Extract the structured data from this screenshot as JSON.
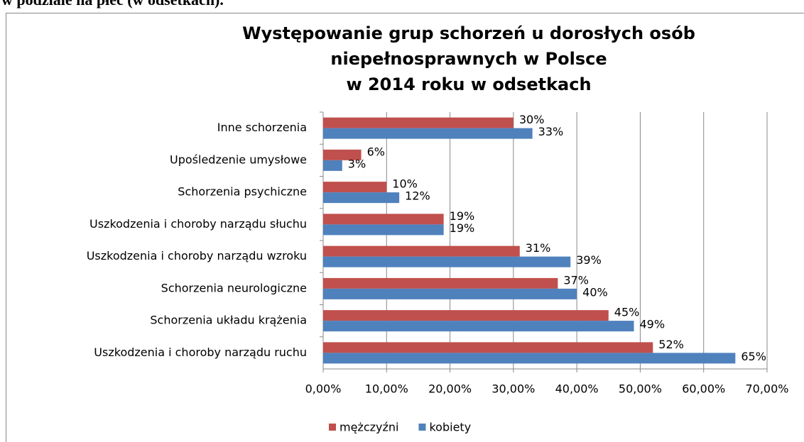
{
  "caption": "w podziale na płeć (w odsetkach).",
  "chart_data": {
    "type": "hbar",
    "title": [
      "Występowanie grup schorzeń u dorosłych osób",
      "niepełnosprawnych w Polsce",
      "w 2014 roku w odsetkach"
    ],
    "categories": [
      "Inne schorzenia",
      "Upośledzenie umysłowe",
      "Schorzenia psychiczne",
      "Uszkodzenia i choroby narządu słuchu",
      "Uszkodzenia i choroby narządu wzroku",
      "Schorzenia neurologiczne",
      "Schorzenia układu krążenia",
      "Uszkodzenia i choroby narządu ruchu"
    ],
    "series": [
      {
        "name": "mężczyźni",
        "color": "#c0504d",
        "values": [
          30,
          6,
          10,
          19,
          31,
          37,
          45,
          52
        ],
        "value_labels": [
          "30%",
          "6%",
          "10%",
          "19%",
          "31%",
          "37%",
          "45%",
          "52%"
        ]
      },
      {
        "name": "kobiety",
        "color": "#4f81bd",
        "values": [
          33,
          3,
          12,
          19,
          39,
          40,
          49,
          65
        ],
        "value_labels": [
          "33%",
          "3%",
          "12%",
          "19%",
          "39%",
          "40%",
          "49%",
          "65%"
        ]
      }
    ],
    "xlim": [
      0,
      70
    ],
    "xticks": [
      {
        "value": 0,
        "label": "0,00%"
      },
      {
        "value": 10,
        "label": "10,00%"
      },
      {
        "value": 20,
        "label": "20,00%"
      },
      {
        "value": 30,
        "label": "30,00%"
      },
      {
        "value": 40,
        "label": "40,00%"
      },
      {
        "value": 50,
        "label": "50,00%"
      },
      {
        "value": 60,
        "label": "60,00%"
      },
      {
        "value": 70,
        "label": "70,00%"
      }
    ],
    "grid": true,
    "legend": "bottom"
  }
}
